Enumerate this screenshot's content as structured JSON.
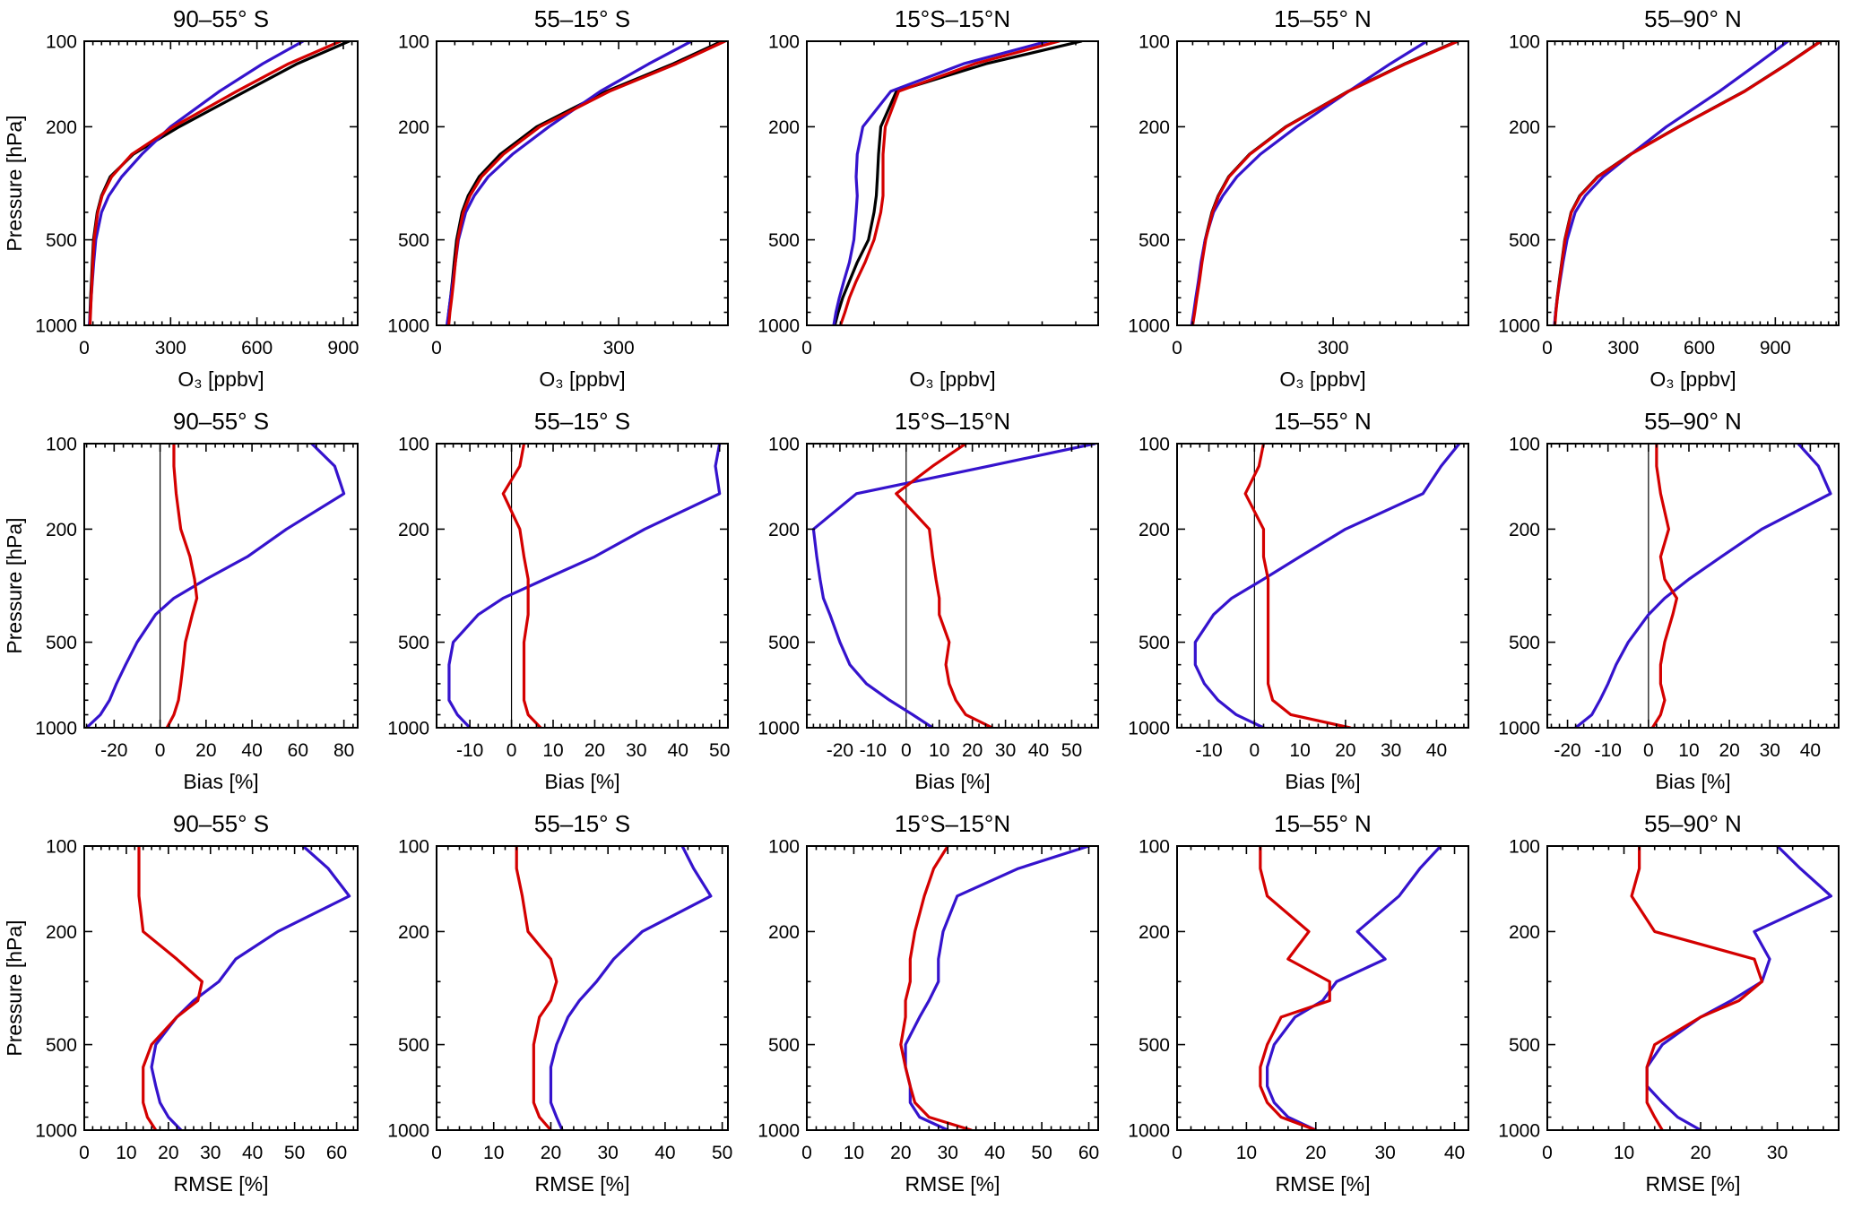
{
  "figure": {
    "background": "#ffffff",
    "colors": {
      "black": "#000000",
      "red": "#d40000",
      "blue": "#3513cd"
    }
  },
  "chart_data": {
    "type": "line",
    "description": "3x5 grid of vertical profile plots: row 1 ozone mixing ratio profiles, row 2 bias, row 3 RMSE, for five latitude bands. Y axis is pressure (hPa), log scale, inverted (100 hPa top, 1000 hPa bottom).",
    "y_axis": {
      "label": "Pressure [hPa]",
      "scale": "log",
      "range": [
        100,
        1000
      ],
      "ticks": [
        100,
        200,
        500,
        1000
      ],
      "minor": [
        300,
        400,
        600,
        700,
        800,
        900
      ],
      "inverted": true
    },
    "column_titles": [
      "90–55° S",
      "55–15° S",
      "15°S–15°N",
      "15–55° N",
      "55–90° N"
    ],
    "row_xlabels": [
      "O₃ [ppbv]",
      "Bias [%]",
      "RMSE [%]"
    ],
    "pressures": [
      1000,
      900,
      800,
      700,
      600,
      500,
      400,
      350,
      300,
      250,
      200,
      150,
      120,
      100
    ],
    "panels": [
      {
        "id": "o3-90-55s",
        "row": 0,
        "col": 0,
        "title": "90–55° S",
        "xlabel": "O₃ [ppbv]",
        "x_range": [
          0,
          950
        ],
        "x_ticks": [
          0,
          300,
          600,
          900
        ],
        "x_minor_step": 30,
        "zero_line": false,
        "series": [
          {
            "name": "black",
            "color": "black",
            "values": [
              18,
              20,
              22,
              25,
              28,
              32,
              45,
              60,
              90,
              170,
              330,
              560,
              740,
              920
            ]
          },
          {
            "name": "blue",
            "color": "blue",
            "values": [
              18,
              21,
              24,
              28,
              33,
              40,
              60,
              85,
              130,
              200,
              300,
              470,
              620,
              760
            ]
          },
          {
            "name": "red",
            "color": "red",
            "values": [
              20,
              22,
              24,
              27,
              30,
              34,
              47,
              62,
              95,
              165,
              310,
              530,
              710,
              890
            ]
          }
        ]
      },
      {
        "id": "o3-55-15s",
        "row": 0,
        "col": 1,
        "title": "55–15° S",
        "xlabel": "O₃ [ppbv]",
        "x_range": [
          0,
          480
        ],
        "x_ticks": [
          0,
          300
        ],
        "x_minor_step": 30,
        "zero_line": false,
        "series": [
          {
            "name": "black",
            "color": "black",
            "values": [
              18,
              20,
              23,
              26,
              29,
              33,
              42,
              52,
              70,
              105,
              165,
              280,
              390,
              470
            ]
          },
          {
            "name": "blue",
            "color": "blue",
            "values": [
              17,
              20,
              23,
              27,
              31,
              36,
              48,
              62,
              85,
              125,
              185,
              270,
              350,
              420
            ]
          },
          {
            "name": "red",
            "color": "red",
            "values": [
              20,
              22,
              25,
              28,
              31,
              35,
              44,
              55,
              74,
              110,
              170,
              285,
              395,
              475
            ]
          }
        ]
      },
      {
        "id": "o3-tropics",
        "row": 0,
        "col": 2,
        "title": "15°S–15°N",
        "xlabel": "O₃ [ppbv]",
        "x_range": [
          0,
          260
        ],
        "x_ticks": [
          0
        ],
        "x_minor_step": 30,
        "zero_line": false,
        "series": [
          {
            "name": "black",
            "color": "black",
            "values": [
              25,
              28,
              32,
              38,
              45,
              55,
              60,
              62,
              63,
              64,
              66,
              80,
              160,
              245
            ]
          },
          {
            "name": "blue",
            "color": "blue",
            "values": [
              24,
              26,
              29,
              33,
              38,
              42,
              44,
              45,
              44,
              45,
              50,
              75,
              140,
              215
            ]
          },
          {
            "name": "red",
            "color": "red",
            "values": [
              30,
              34,
              38,
              44,
              52,
              60,
              66,
              68,
              68,
              68,
              70,
              82,
              150,
              225
            ]
          }
        ]
      },
      {
        "id": "o3-15-55n",
        "row": 0,
        "col": 3,
        "title": "15–55° N",
        "xlabel": "O₃ [ppbv]",
        "x_range": [
          0,
          560
        ],
        "x_ticks": [
          0,
          300
        ],
        "x_minor_step": 30,
        "zero_line": false,
        "series": [
          {
            "name": "black",
            "color": "black",
            "values": [
              29,
              33,
              37,
              42,
              47,
              54,
              67,
              79,
              99,
              139,
              209,
              329,
              438,
              538
            ]
          },
          {
            "name": "blue",
            "color": "blue",
            "values": [
              28,
              32,
              36,
              41,
              46,
              54,
              70,
              88,
              115,
              160,
              230,
              330,
              410,
              480
            ]
          },
          {
            "name": "red",
            "color": "red",
            "values": [
              30,
              34,
              38,
              43,
              48,
              55,
              68,
              80,
              100,
              140,
              210,
              330,
              440,
              540
            ]
          }
        ]
      },
      {
        "id": "o3-55-90n",
        "row": 0,
        "col": 4,
        "title": "55–90° N",
        "xlabel": "O₃ [ppbv]",
        "x_range": [
          0,
          1150
        ],
        "x_ticks": [
          0,
          300,
          600,
          900
        ],
        "x_minor_step": 30,
        "zero_line": false,
        "series": [
          {
            "name": "black",
            "color": "black",
            "values": [
              29,
              33,
              39,
              47,
              57,
              69,
              94,
              128,
              198,
              328,
              518,
              778,
              948,
              1078
            ]
          },
          {
            "name": "blue",
            "color": "blue",
            "values": [
              28,
              33,
              40,
              50,
              62,
              78,
              110,
              150,
              220,
              330,
              470,
              680,
              830,
              950
            ]
          },
          {
            "name": "red",
            "color": "red",
            "values": [
              30,
              34,
              40,
              48,
              58,
              70,
              95,
              130,
              200,
              330,
              520,
              780,
              950,
              1080
            ]
          }
        ]
      },
      {
        "id": "bias-90-55s",
        "row": 1,
        "col": 0,
        "title": "90–55° S",
        "xlabel": "Bias [%]",
        "x_range": [
          -33,
          86
        ],
        "x_ticks": [
          -20,
          0,
          20,
          40,
          60,
          80
        ],
        "x_minor_step": 4,
        "zero_line": true,
        "series": [
          {
            "name": "blue",
            "color": "blue",
            "values": [
              -32,
              -26,
              -22,
              -19,
              -15,
              -10,
              -2,
              6,
              20,
              38,
              55,
              80,
              76,
              66
            ]
          },
          {
            "name": "red",
            "color": "red",
            "values": [
              3,
              6,
              8,
              9,
              10,
              11,
              14,
              16,
              15,
              13,
              9,
              7,
              6,
              6
            ]
          }
        ]
      },
      {
        "id": "bias-55-15s",
        "row": 1,
        "col": 1,
        "title": "55–15° S",
        "xlabel": "Bias [%]",
        "x_range": [
          -18,
          52
        ],
        "x_ticks": [
          -10,
          0,
          10,
          20,
          30,
          40,
          50
        ],
        "x_minor_step": 2,
        "zero_line": true,
        "series": [
          {
            "name": "blue",
            "color": "blue",
            "values": [
              -10,
              -13,
              -15,
              -15,
              -15,
              -14,
              -8,
              -2,
              8,
              20,
              32,
              50,
              49,
              50
            ]
          },
          {
            "name": "red",
            "color": "red",
            "values": [
              7,
              4,
              3,
              3,
              3,
              3,
              4,
              4,
              4,
              3,
              2,
              -2,
              2,
              3
            ]
          }
        ]
      },
      {
        "id": "bias-tropics",
        "row": 1,
        "col": 2,
        "title": "15°S–15°N",
        "xlabel": "Bias [%]",
        "x_range": [
          -30,
          58
        ],
        "x_ticks": [
          -20,
          -10,
          0,
          10,
          20,
          30,
          40,
          50
        ],
        "x_minor_step": 2,
        "zero_line": true,
        "series": [
          {
            "name": "blue",
            "color": "blue",
            "values": [
              8,
              2,
              -5,
              -12,
              -17,
              -20,
              -23,
              -25,
              -26,
              -27,
              -28,
              -15,
              25,
              57
            ]
          },
          {
            "name": "red",
            "color": "red",
            "values": [
              26,
              18,
              15,
              13,
              12,
              13,
              10,
              10,
              9,
              8,
              7,
              -3,
              8,
              18
            ]
          }
        ]
      },
      {
        "id": "bias-15-55n",
        "row": 1,
        "col": 3,
        "title": "15–55° N",
        "xlabel": "Bias [%]",
        "x_range": [
          -17,
          47
        ],
        "x_ticks": [
          -10,
          0,
          10,
          20,
          30,
          40
        ],
        "x_minor_step": 2,
        "zero_line": true,
        "series": [
          {
            "name": "blue",
            "color": "blue",
            "values": [
              2,
              -4,
              -8,
              -11,
              -13,
              -13,
              -9,
              -5,
              2,
              10,
              20,
              37,
              41,
              45
            ]
          },
          {
            "name": "red",
            "color": "red",
            "values": [
              21,
              8,
              4,
              3,
              3,
              3,
              3,
              3,
              3,
              2,
              2,
              -2,
              1,
              2
            ]
          }
        ]
      },
      {
        "id": "bias-55-90n",
        "row": 1,
        "col": 4,
        "title": "55–90° N",
        "xlabel": "Bias [%]",
        "x_range": [
          -25,
          47
        ],
        "x_ticks": [
          -20,
          -10,
          0,
          10,
          20,
          30,
          40
        ],
        "x_minor_step": 2,
        "zero_line": true,
        "series": [
          {
            "name": "blue",
            "color": "blue",
            "values": [
              -18,
              -14,
              -12,
              -10,
              -8,
              -5,
              0,
              4,
              10,
              18,
              28,
              45,
              42,
              37
            ]
          },
          {
            "name": "red",
            "color": "red",
            "values": [
              1,
              3,
              4,
              3,
              3,
              4,
              6,
              7,
              4,
              3,
              5,
              3,
              2,
              2
            ]
          }
        ]
      },
      {
        "id": "rmse-90-55s",
        "row": 2,
        "col": 0,
        "title": "90–55° S",
        "xlabel": "RMSE [%]",
        "x_range": [
          0,
          65
        ],
        "x_ticks": [
          0,
          10,
          20,
          30,
          40,
          50,
          60
        ],
        "x_minor_step": 2,
        "zero_line": false,
        "series": [
          {
            "name": "blue",
            "color": "blue",
            "values": [
              23,
              20,
              18,
              17,
              16,
              17,
              22,
              26,
              32,
              36,
              46,
              63,
              58,
              52
            ]
          },
          {
            "name": "red",
            "color": "red",
            "values": [
              17,
              15,
              14,
              14,
              14,
              16,
              22,
              27,
              28,
              22,
              14,
              13,
              13,
              13
            ]
          }
        ]
      },
      {
        "id": "rmse-55-15s",
        "row": 2,
        "col": 1,
        "title": "55–15° S",
        "xlabel": "RMSE [%]",
        "x_range": [
          0,
          51
        ],
        "x_ticks": [
          0,
          10,
          20,
          30,
          40,
          50
        ],
        "x_minor_step": 2,
        "zero_line": false,
        "series": [
          {
            "name": "blue",
            "color": "blue",
            "values": [
              22,
              21,
              20,
              20,
              20,
              21,
              23,
              25,
              28,
              31,
              36,
              48,
              45,
              43
            ]
          },
          {
            "name": "red",
            "color": "red",
            "values": [
              20,
              18,
              17,
              17,
              17,
              17,
              18,
              20,
              21,
              20,
              16,
              15,
              14,
              14
            ]
          }
        ]
      },
      {
        "id": "rmse-tropics",
        "row": 2,
        "col": 2,
        "title": "15°S–15°N",
        "xlabel": "RMSE [%]",
        "x_range": [
          0,
          62
        ],
        "x_ticks": [
          0,
          10,
          20,
          30,
          40,
          50,
          60
        ],
        "x_minor_step": 2,
        "zero_line": false,
        "series": [
          {
            "name": "blue",
            "color": "blue",
            "values": [
              30,
              24,
              22,
              22,
              21,
              21,
              24,
              26,
              28,
              28,
              29,
              32,
              45,
              60
            ]
          },
          {
            "name": "red",
            "color": "red",
            "values": [
              35,
              26,
              23,
              22,
              21,
              20,
              21,
              21,
              22,
              22,
              23,
              25,
              27,
              30
            ]
          }
        ]
      },
      {
        "id": "rmse-15-55n",
        "row": 2,
        "col": 3,
        "title": "15–55° N",
        "xlabel": "RMSE [%]",
        "x_range": [
          0,
          42
        ],
        "x_ticks": [
          0,
          10,
          20,
          30,
          40
        ],
        "x_minor_step": 2,
        "zero_line": false,
        "series": [
          {
            "name": "blue",
            "color": "blue",
            "values": [
              20,
              16,
              14,
              13,
              13,
              14,
              17,
              21,
              23,
              30,
              26,
              32,
              35,
              38
            ]
          },
          {
            "name": "red",
            "color": "red",
            "values": [
              20,
              15,
              13,
              12,
              12,
              13,
              15,
              22,
              22,
              16,
              19,
              13,
              12,
              12
            ]
          }
        ]
      },
      {
        "id": "rmse-55-90n",
        "row": 2,
        "col": 4,
        "title": "55–90° N",
        "xlabel": "RMSE [%]",
        "x_range": [
          0,
          38
        ],
        "x_ticks": [
          0,
          10,
          20,
          30
        ],
        "x_minor_step": 2,
        "zero_line": false,
        "series": [
          {
            "name": "blue",
            "color": "blue",
            "values": [
              20,
              17,
              15,
              13,
              13,
              15,
              20,
              24,
              28,
              29,
              27,
              37,
              33,
              30
            ]
          },
          {
            "name": "red",
            "color": "red",
            "values": [
              15,
              14,
              13,
              13,
              13,
              14,
              20,
              25,
              28,
              27,
              14,
              11,
              12,
              12
            ]
          }
        ]
      }
    ]
  }
}
